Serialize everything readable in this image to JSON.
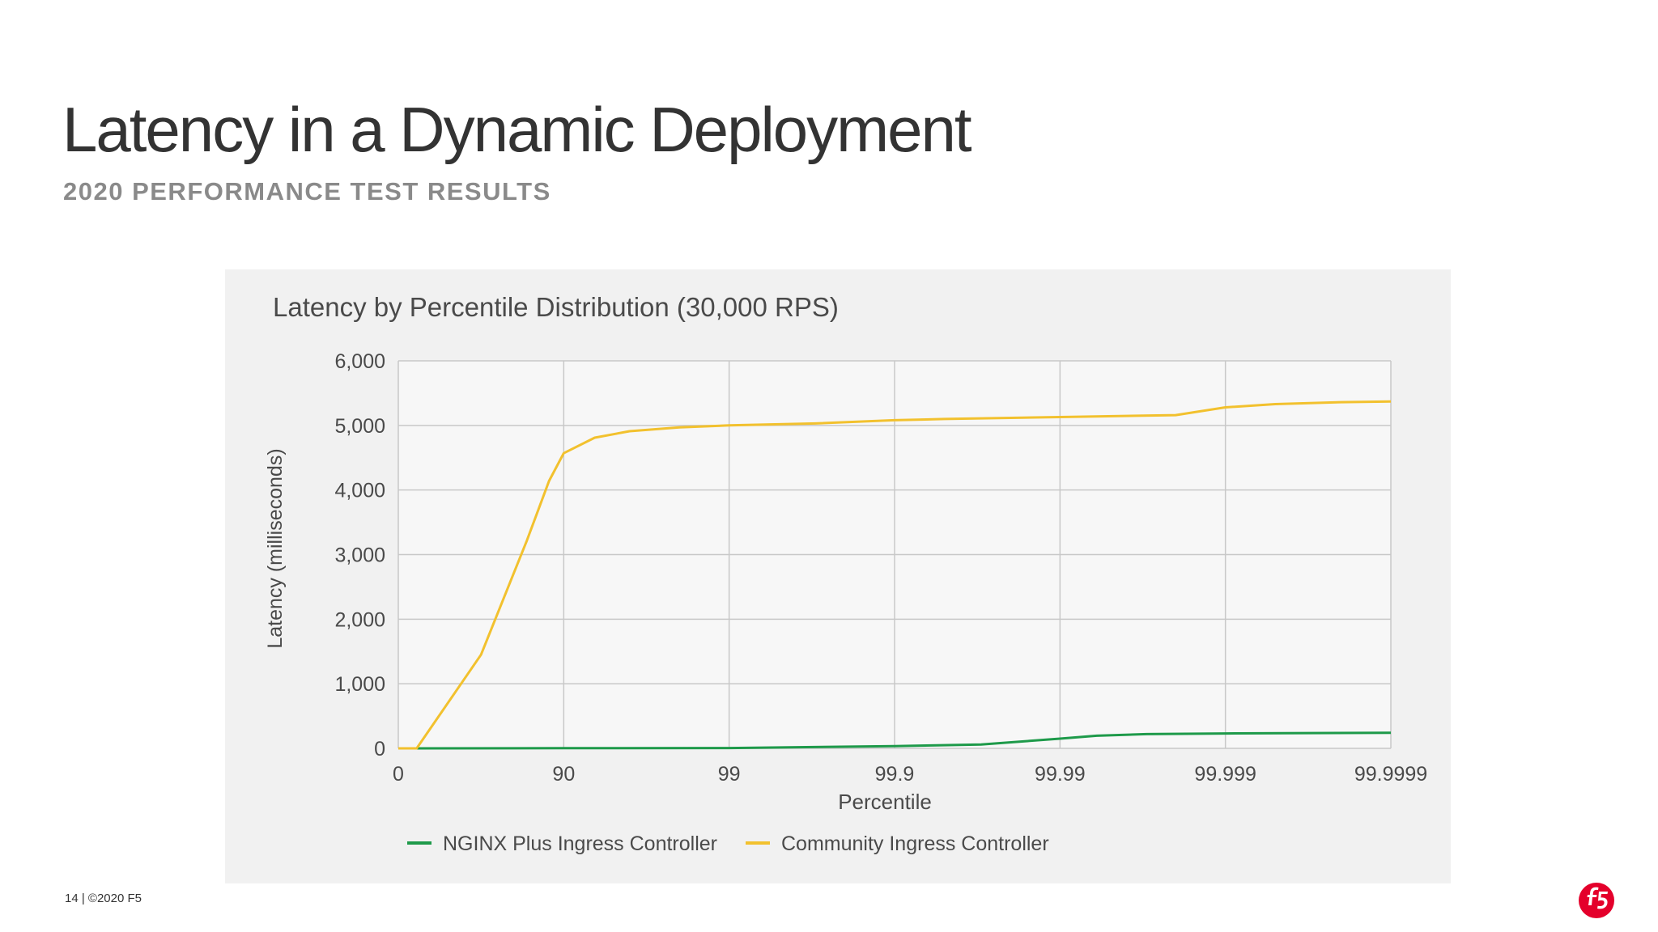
{
  "slide": {
    "title": "Latency in a Dynamic Deployment",
    "subtitle": "2020 PERFORMANCE TEST RESULTS",
    "footer": "14 | ©2020 F5",
    "logo": "f5-logo-icon"
  },
  "colors": {
    "nginx": "#1e9a4a",
    "community": "#f2c12e",
    "logo": "#e4002b"
  },
  "chart_data": {
    "type": "line",
    "title": "Latency by Percentile Distribution (30,000 RPS)",
    "xlabel": "Percentile",
    "ylabel": "Latency (milliseconds)",
    "x_scale": "log-percentile",
    "x_ticks": [
      "0",
      "90",
      "99",
      "99.9",
      "99.99",
      "99.999",
      "99.9999"
    ],
    "y_ticks": [
      "0",
      "1,000",
      "2,000",
      "3,000",
      "4,000",
      "5,000",
      "6,000"
    ],
    "ylim": [
      0,
      6000
    ],
    "grid": true,
    "legend_position": "bottom",
    "series": [
      {
        "name": "NGINX Plus Ingress Controller",
        "color_key": "nginx",
        "points": [
          [
            0,
            0
          ],
          [
            90,
            3
          ],
          [
            99,
            5
          ],
          [
            99.9,
            35
          ],
          [
            99.97,
            60
          ],
          [
            99.99,
            150
          ],
          [
            99.994,
            195
          ],
          [
            99.997,
            220
          ],
          [
            99.999,
            230
          ],
          [
            99.9999,
            240
          ]
        ]
      },
      {
        "name": "Community Ingress Controller",
        "color_key": "community",
        "points": [
          [
            0,
            0
          ],
          [
            10,
            0
          ],
          [
            45,
            1450
          ],
          [
            70,
            3220
          ],
          [
            82,
            4140
          ],
          [
            90,
            4570
          ],
          [
            93.5,
            4810
          ],
          [
            96,
            4910
          ],
          [
            98,
            4970
          ],
          [
            99,
            5000
          ],
          [
            99.7,
            5030
          ],
          [
            99.9,
            5080
          ],
          [
            99.95,
            5100
          ],
          [
            99.99,
            5130
          ],
          [
            99.998,
            5160
          ],
          [
            99.999,
            5280
          ],
          [
            99.9995,
            5330
          ],
          [
            99.9998,
            5360
          ],
          [
            99.9999,
            5370
          ]
        ]
      }
    ]
  }
}
